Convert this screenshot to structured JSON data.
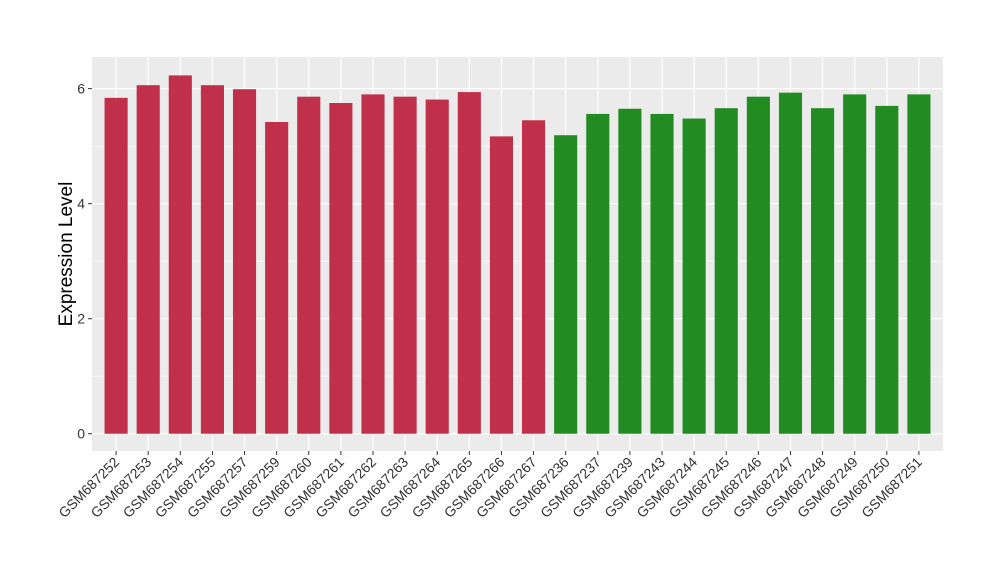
{
  "chart_data": {
    "type": "bar",
    "title": "",
    "xlabel": "",
    "ylabel": "Expression Level",
    "ylim": [
      -0.3,
      6.55
    ],
    "yticks": [
      0,
      2,
      4,
      6
    ],
    "grid": true,
    "categories": [
      "GSM687252",
      "GSM687253",
      "GSM687254",
      "GSM687255",
      "GSM687257",
      "GSM687259",
      "GSM687260",
      "GSM687261",
      "GSM687262",
      "GSM687263",
      "GSM687264",
      "GSM687265",
      "GSM687266",
      "GSM687267",
      "GSM687236",
      "GSM687237",
      "GSM687239",
      "GSM687243",
      "GSM687244",
      "GSM687245",
      "GSM687246",
      "GSM687247",
      "GSM687248",
      "GSM687249",
      "GSM687250",
      "GSM687251"
    ],
    "values": [
      5.84,
      6.06,
      6.23,
      6.06,
      5.99,
      5.42,
      5.86,
      5.75,
      5.9,
      5.86,
      5.81,
      5.94,
      5.17,
      5.45,
      5.19,
      5.56,
      5.65,
      5.56,
      5.48,
      5.66,
      5.86,
      5.93,
      5.66,
      5.9,
      5.7,
      5.9
    ],
    "group_colors": [
      "#c1304a",
      "#c1304a",
      "#c1304a",
      "#c1304a",
      "#c1304a",
      "#c1304a",
      "#c1304a",
      "#c1304a",
      "#c1304a",
      "#c1304a",
      "#c1304a",
      "#c1304a",
      "#c1304a",
      "#c1304a",
      "#228b22",
      "#228b22",
      "#228b22",
      "#228b22",
      "#228b22",
      "#228b22",
      "#228b22",
      "#228b22",
      "#228b22",
      "#228b22",
      "#228b22",
      "#228b22"
    ],
    "panel_color": "#ebebeb",
    "grid_color": "#ffffff"
  }
}
